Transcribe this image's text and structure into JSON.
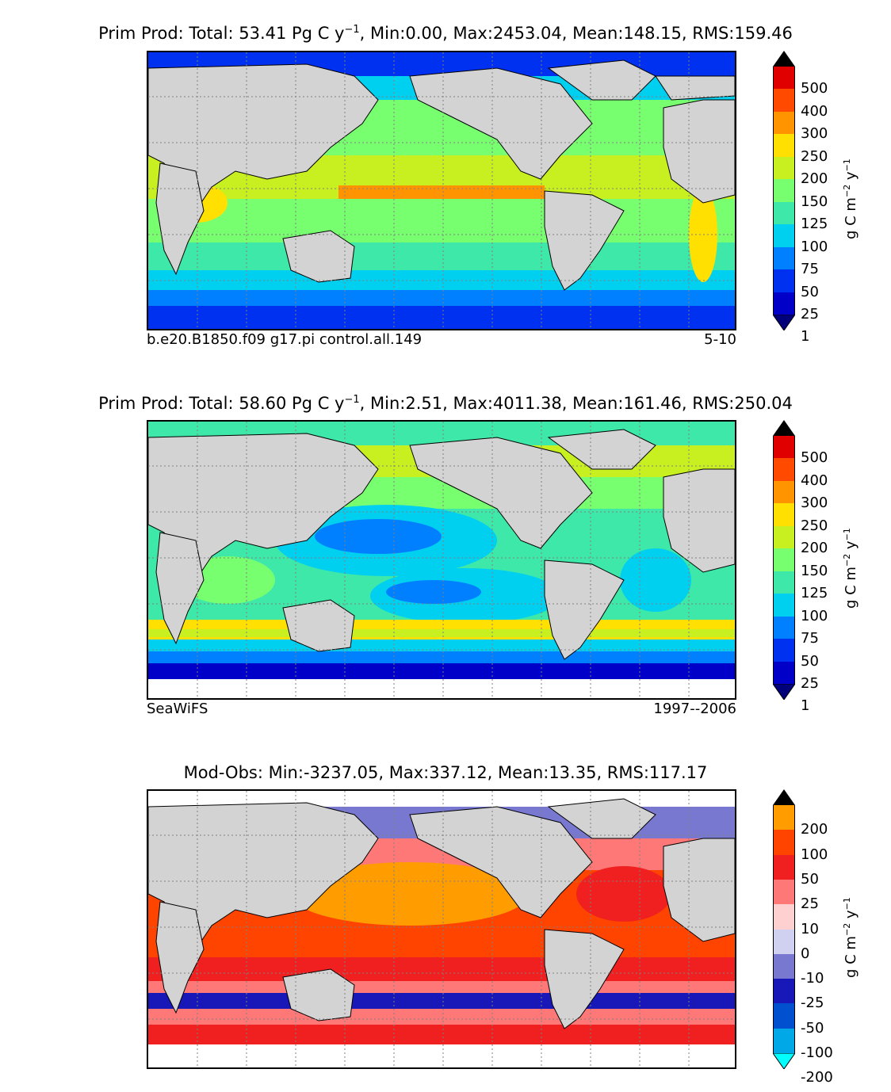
{
  "panels": [
    {
      "title_prefix": "Prim Prod: Total: 53.41 Pg C y",
      "title_exp": "−1",
      "title_suffix": ", Min:0.00, Max:2453.04, Mean:148.15, RMS:159.46",
      "caption_left": "b.e20.B1850.f09 g17.pi control.all.149",
      "caption_right": "5-10",
      "unit_base": "g C m",
      "unit_exp1": "−2",
      "unit_mid": " y",
      "unit_exp2": "−1",
      "ticks": [
        "500",
        "400",
        "300",
        "250",
        "200",
        "150",
        "125",
        "100",
        "75",
        "50",
        "25",
        "1"
      ],
      "colors": [
        "#7a0000",
        "#e00000",
        "#ff4a00",
        "#ff9400",
        "#ffe000",
        "#c8f020",
        "#78ff70",
        "#3ee8a8",
        "#00d0f0",
        "#0080ff",
        "#0030f0",
        "#0000c8",
        "#00007a"
      ]
    },
    {
      "title_prefix": "Prim Prod: Total: 58.60 Pg C y",
      "title_exp": "−1",
      "title_suffix": ", Min:2.51, Max:4011.38, Mean:161.46, RMS:250.04",
      "caption_left": "SeaWiFS",
      "caption_right": "1997--2006",
      "unit_base": "g C m",
      "unit_exp1": "−2",
      "unit_mid": " y",
      "unit_exp2": "−1",
      "ticks": [
        "500",
        "400",
        "300",
        "250",
        "200",
        "150",
        "125",
        "100",
        "75",
        "50",
        "25",
        "1"
      ],
      "colors": [
        "#7a0000",
        "#e00000",
        "#ff4a00",
        "#ff9400",
        "#ffe000",
        "#c8f020",
        "#78ff70",
        "#3ee8a8",
        "#00d0f0",
        "#0080ff",
        "#0030f0",
        "#0000c8",
        "#00007a"
      ]
    },
    {
      "title_prefix": "Mod-Obs: Min:-3237.05, Max:337.12, Mean:13.35, RMS:117.17",
      "title_exp": "",
      "title_suffix": "",
      "caption_left": "",
      "caption_right": "",
      "unit_base": "g C m",
      "unit_exp1": "−2",
      "unit_mid": " y",
      "unit_exp2": "−1",
      "ticks": [
        "200",
        "100",
        "50",
        "25",
        "10",
        "0",
        "-10",
        "-25",
        "-50",
        "-100",
        "-200"
      ],
      "colors": [
        "#ffff00",
        "#ff9c00",
        "#ff4400",
        "#f02020",
        "#ff7878",
        "#ffd0d0",
        "#d0d0f0",
        "#7878d0",
        "#1818b8",
        "#0050d0",
        "#00a8e8",
        "#00ffff"
      ]
    }
  ],
  "colors": {
    "land": "#d3d3d3",
    "gridline": "#808080"
  }
}
